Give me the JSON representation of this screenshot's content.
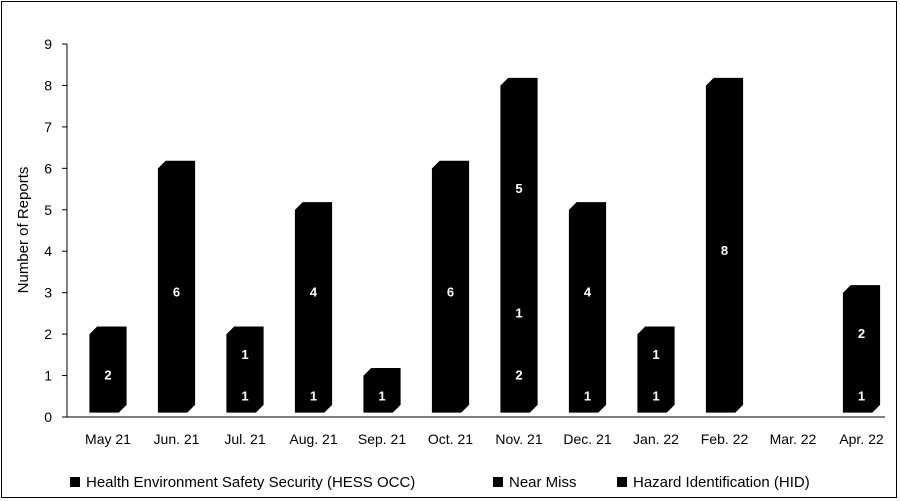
{
  "chart_data": {
    "type": "bar",
    "stacked": true,
    "style": "3d-column",
    "ylabel": "Number of Reports",
    "ylim": [
      0,
      9
    ],
    "yticks": [
      0,
      1,
      2,
      3,
      4,
      5,
      6,
      7,
      8,
      9
    ],
    "categories": [
      "May 21",
      "Jun. 21",
      "Jul. 21",
      "Aug. 21",
      "Sep. 21",
      "Oct. 21",
      "Nov. 21",
      "Dec. 21",
      "Jan. 22",
      "Feb. 22",
      "Mar. 22",
      "Apr. 22"
    ],
    "series": [
      {
        "name": "Health Environment Safety Security (HESS OCC)",
        "values": [
          2,
          6,
          1,
          1,
          1,
          6,
          2,
          1,
          1,
          8,
          0,
          1
        ]
      },
      {
        "name": "Near Miss",
        "values": [
          0,
          0,
          0,
          0,
          0,
          0,
          1,
          0,
          0,
          0,
          0,
          0
        ]
      },
      {
        "name": "Hazard Identification (HID)",
        "values": [
          0,
          0,
          1,
          4,
          0,
          0,
          5,
          4,
          1,
          0,
          0,
          2
        ]
      }
    ],
    "legend_position": "bottom",
    "bar_color": "#000000",
    "label_color": "#ffffff"
  }
}
